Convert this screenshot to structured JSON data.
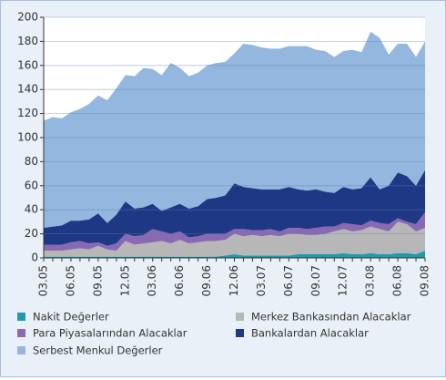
{
  "chart_data": {
    "type": "stacked_area",
    "categories": [
      "03.05",
      null,
      null,
      "06.05",
      null,
      null,
      "09.05",
      null,
      null,
      "12.05",
      null,
      null,
      "03.06",
      null,
      null,
      "06.06",
      null,
      null,
      "09.06",
      null,
      null,
      "12.06",
      null,
      null,
      "03.07",
      null,
      null,
      "06.07",
      null,
      null,
      "09.07",
      null,
      null,
      "12.07",
      null,
      null,
      "03.08",
      null,
      null,
      "06.08",
      null,
      null,
      "09.08"
    ],
    "ylim": [
      0,
      200
    ],
    "yticks": [
      0,
      20,
      40,
      60,
      80,
      100,
      120,
      140,
      160,
      180,
      200
    ],
    "grid": true,
    "series": [
      {
        "name": "Nakit Değerler",
        "color": "#1f9bab",
        "values": [
          1,
          1,
          1,
          1,
          1,
          1,
          1,
          1,
          1,
          1,
          1,
          1,
          1,
          1,
          1,
          1,
          1,
          1,
          1,
          1,
          2,
          3,
          2,
          2,
          2,
          2,
          2,
          2,
          3,
          3,
          3,
          3,
          3,
          4,
          3,
          3,
          4,
          3,
          3,
          4,
          4,
          3,
          6
        ]
      },
      {
        "name": "Merkez Bankasından Alacaklar",
        "color": "#b7b7b7",
        "values": [
          5,
          5,
          5,
          6,
          7,
          6,
          9,
          6,
          5,
          13,
          10,
          11,
          12,
          13,
          11,
          14,
          11,
          12,
          13,
          13,
          13,
          17,
          16,
          17,
          16,
          17,
          16,
          18,
          17,
          16,
          16,
          17,
          19,
          20,
          19,
          20,
          22,
          21,
          19,
          26,
          24,
          19,
          19
        ]
      },
      {
        "name": "Para Piyasalarından Alacaklar",
        "color": "#8a69b3",
        "values": [
          5,
          5,
          5,
          6,
          6,
          5,
          3,
          3,
          6,
          6,
          7,
          7,
          11,
          8,
          8,
          7,
          5,
          5,
          6,
          6,
          5,
          4,
          6,
          4,
          5,
          5,
          4,
          5,
          5,
          5,
          6,
          6,
          4,
          5,
          6,
          4,
          5,
          5,
          6,
          3,
          2,
          6,
          13
        ]
      },
      {
        "name": "Bankalardan  Alacaklar",
        "color": "#1f3885",
        "values": [
          14,
          15,
          16,
          18,
          17,
          20,
          24,
          19,
          24,
          27,
          23,
          23,
          21,
          17,
          22,
          23,
          24,
          25,
          29,
          30,
          32,
          38,
          35,
          35,
          34,
          33,
          35,
          34,
          32,
          32,
          32,
          29,
          28,
          30,
          29,
          31,
          36,
          28,
          32,
          38,
          38,
          32,
          35
        ]
      },
      {
        "name": "Serbest Menkul Değerler",
        "color": "#93b7de",
        "values": [
          89,
          91,
          89,
          90,
          93,
          96,
          98,
          102,
          105,
          105,
          110,
          116,
          112,
          113,
          120,
          113,
          110,
          111,
          111,
          112,
          111,
          108,
          119,
          119,
          118,
          117,
          117,
          117,
          119,
          120,
          116,
          117,
          113,
          113,
          116,
          113,
          121,
          126,
          109,
          107,
          110,
          107,
          107
        ]
      }
    ]
  }
}
